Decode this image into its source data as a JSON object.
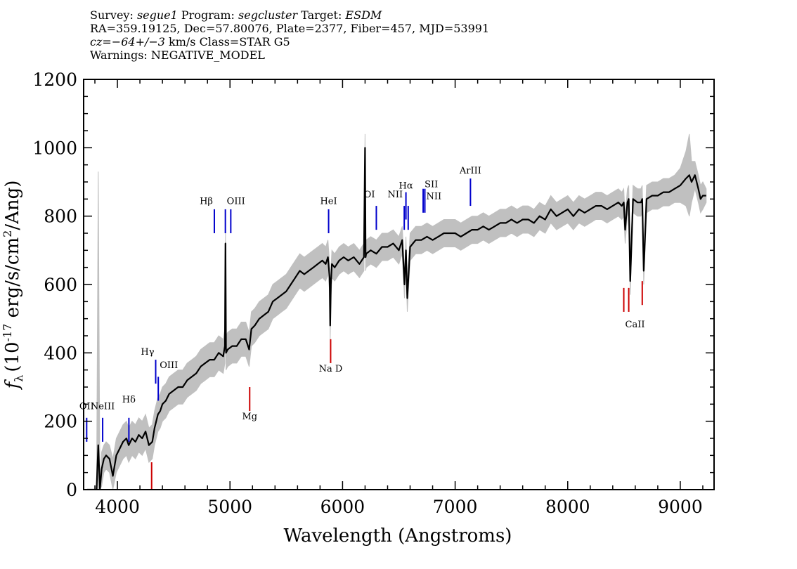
{
  "header": {
    "survey_label": "Survey: ",
    "survey": "segue1",
    "program_label": " Program: ",
    "program": "segcluster",
    "target_label": " Target: ",
    "target": "ESDM",
    "line2": "RA=359.19125, Dec=57.80076, Plate=2377, Fiber=457, MJD=53991",
    "cz_label": "cz",
    "cz": "=−64+/−3",
    "cz_tail": " km/s Class=STAR G5",
    "warnings": "Warnings: NEGATIVE_MODEL"
  },
  "chart_data": {
    "type": "line",
    "xlabel": "Wavelength (Angstroms)",
    "ylabel": "f_λ (10^-17 erg/s/cm²/Ang)",
    "ylabel_text": "(10",
    "ylabel_exp": "-17",
    "ylabel_tail": " erg/s/cm",
    "ylabel_sq": "2",
    "ylabel_end": "/Ang)",
    "xlim": [
      3700,
      9300
    ],
    "ylim": [
      0,
      1200
    ],
    "xticks": [
      4000,
      5000,
      6000,
      7000,
      8000,
      9000
    ],
    "yticks": [
      0,
      200,
      400,
      600,
      800,
      1000,
      1200
    ],
    "colors": {
      "flux": "#000000",
      "error": "#c0c0c0",
      "emission": "#0000cc",
      "absorption": "#cc0000",
      "spike": "#444444"
    },
    "spectrum": {
      "x": [
        3730,
        3760,
        3790,
        3800,
        3815,
        3830,
        3845,
        3860,
        3880,
        3900,
        3930,
        3960,
        3990,
        4020,
        4050,
        4080,
        4100,
        4130,
        4160,
        4190,
        4220,
        4250,
        4280,
        4310,
        4330,
        4345,
        4360,
        4380,
        4400,
        4430,
        4460,
        4500,
        4540,
        4580,
        4620,
        4660,
        4700,
        4740,
        4780,
        4820,
        4860,
        4900,
        4940,
        4955,
        4960,
        4965,
        4980,
        5020,
        5060,
        5100,
        5140,
        5170,
        5190,
        5220,
        5260,
        5300,
        5340,
        5380,
        5420,
        5460,
        5500,
        5540,
        5580,
        5620,
        5660,
        5700,
        5740,
        5780,
        5820,
        5850,
        5870,
        5885,
        5890,
        5896,
        5905,
        5930,
        5970,
        6010,
        6050,
        6100,
        6150,
        6190,
        6200,
        6205,
        6210,
        6250,
        6300,
        6350,
        6400,
        6450,
        6500,
        6530,
        6550,
        6563,
        6575,
        6600,
        6650,
        6700,
        6750,
        6800,
        6850,
        6900,
        6950,
        7000,
        7050,
        7100,
        7150,
        7200,
        7250,
        7300,
        7350,
        7400,
        7450,
        7500,
        7550,
        7600,
        7650,
        7700,
        7750,
        7800,
        7850,
        7900,
        7950,
        8000,
        8050,
        8100,
        8150,
        8200,
        8250,
        8300,
        8350,
        8400,
        8450,
        8480,
        8498,
        8510,
        8530,
        8542,
        8555,
        8580,
        8620,
        8650,
        8662,
        8675,
        8700,
        8750,
        8800,
        8850,
        8900,
        8950,
        9000,
        9050,
        9080,
        9100,
        9130,
        9160,
        9180,
        9200,
        9230
      ],
      "y": [
        0,
        0,
        0,
        0,
        0,
        130,
        0,
        60,
        90,
        100,
        90,
        40,
        100,
        120,
        140,
        150,
        130,
        150,
        140,
        160,
        150,
        170,
        130,
        140,
        180,
        200,
        220,
        230,
        250,
        260,
        280,
        290,
        300,
        300,
        320,
        330,
        340,
        360,
        370,
        380,
        380,
        400,
        390,
        420,
        720,
        400,
        410,
        420,
        420,
        440,
        440,
        410,
        470,
        480,
        500,
        510,
        520,
        550,
        560,
        570,
        580,
        600,
        620,
        640,
        630,
        640,
        650,
        660,
        670,
        660,
        680,
        620,
        480,
        600,
        660,
        650,
        670,
        680,
        670,
        680,
        660,
        680,
        1000,
        680,
        690,
        700,
        690,
        710,
        710,
        720,
        700,
        730,
        600,
        700,
        560,
        710,
        730,
        730,
        740,
        730,
        740,
        750,
        750,
        750,
        740,
        750,
        760,
        760,
        770,
        760,
        770,
        780,
        780,
        790,
        780,
        790,
        790,
        780,
        800,
        790,
        820,
        800,
        810,
        820,
        800,
        820,
        810,
        820,
        830,
        830,
        820,
        830,
        840,
        830,
        840,
        760,
        840,
        850,
        610,
        850,
        840,
        840,
        850,
        640,
        850,
        860,
        860,
        870,
        870,
        880,
        890,
        910,
        920,
        900,
        920,
        880,
        850,
        860,
        860
      ],
      "err_top": [
        0,
        0,
        0,
        0,
        0,
        930,
        0,
        110,
        130,
        140,
        130,
        90,
        150,
        170,
        190,
        200,
        180,
        200,
        190,
        210,
        200,
        220,
        180,
        190,
        230,
        250,
        270,
        280,
        300,
        310,
        330,
        340,
        350,
        350,
        370,
        380,
        390,
        410,
        420,
        430,
        430,
        450,
        440,
        470,
        750,
        450,
        460,
        470,
        470,
        490,
        490,
        460,
        520,
        530,
        550,
        560,
        570,
        600,
        610,
        620,
        630,
        650,
        670,
        690,
        680,
        690,
        700,
        710,
        720,
        710,
        730,
        660,
        520,
        640,
        700,
        690,
        710,
        720,
        710,
        720,
        700,
        720,
        1040,
        720,
        730,
        740,
        730,
        750,
        750,
        760,
        740,
        770,
        640,
        740,
        600,
        750,
        770,
        770,
        780,
        770,
        780,
        790,
        790,
        790,
        780,
        790,
        800,
        800,
        810,
        800,
        810,
        820,
        820,
        830,
        820,
        830,
        830,
        820,
        840,
        830,
        860,
        840,
        850,
        860,
        840,
        860,
        850,
        860,
        870,
        870,
        860,
        870,
        880,
        870,
        880,
        800,
        880,
        890,
        650,
        890,
        880,
        880,
        890,
        680,
        890,
        900,
        900,
        910,
        910,
        920,
        940,
        990,
        1040,
        960,
        960,
        920,
        890,
        900,
        880
      ]
    },
    "lines": [
      {
        "label": "OII",
        "wave": 3727,
        "kind": "emission",
        "ymin": 140,
        "ymax": 210,
        "ly": 235,
        "anchor": "middle"
      },
      {
        "label": "NeIII",
        "wave": 3869,
        "kind": "emission",
        "ymin": 140,
        "ymax": 210,
        "ly": 235,
        "anchor": "middle"
      },
      {
        "label": "Hδ",
        "wave": 4102,
        "kind": "emission",
        "ymin": 140,
        "ymax": 210,
        "ly": 255,
        "anchor": "middle"
      },
      {
        "label": "Hγ",
        "wave": 4340,
        "kind": "emission",
        "ymin": 310,
        "ymax": 380,
        "ly": 395,
        "anchor": "end"
      },
      {
        "label": "OIII",
        "wave": 4363,
        "kind": "emission",
        "ymin": 260,
        "ymax": 330,
        "ly": 355,
        "anchor": "start"
      },
      {
        "label": "Hβ",
        "wave": 4861,
        "kind": "emission",
        "ymin": 750,
        "ymax": 820,
        "ly": 835,
        "anchor": "end"
      },
      {
        "label": "OIII",
        "wave": 4959,
        "kind": "emission",
        "ymin": 750,
        "ymax": 820,
        "ly": 835,
        "anchor": "start"
      },
      {
        "label": "OIII",
        "wave": 5007,
        "kind": "emission",
        "ymin": 750,
        "ymax": 820,
        "ly": 0,
        "anchor": "start"
      },
      {
        "label": "HeI",
        "wave": 5876,
        "kind": "emission",
        "ymin": 750,
        "ymax": 820,
        "ly": 835,
        "anchor": "middle"
      },
      {
        "label": "OI",
        "wave": 6300,
        "kind": "emission",
        "ymin": 760,
        "ymax": 830,
        "ly": 855,
        "anchor": "end"
      },
      {
        "label": "NII",
        "wave": 6548,
        "kind": "emission",
        "ymin": 760,
        "ymax": 830,
        "ly": 855,
        "anchor": "end"
      },
      {
        "label": "Hα",
        "wave": 6563,
        "kind": "emission",
        "ymin": 790,
        "ymax": 870,
        "ly": 880,
        "anchor": "middle"
      },
      {
        "label": "NII",
        "wave": 6583,
        "kind": "emission",
        "ymin": 760,
        "ymax": 830,
        "ly": 0,
        "anchor": "start"
      },
      {
        "label": "SII",
        "wave": 6716,
        "kind": "emission",
        "ymin": 810,
        "ymax": 880,
        "ly": 885,
        "anchor": "start"
      },
      {
        "label": "NII",
        "wave": 6731,
        "kind": "emission",
        "ymin": 810,
        "ymax": 880,
        "ly": 850,
        "anchor": "start"
      },
      {
        "label": "ArIII",
        "wave": 7136,
        "kind": "emission",
        "ymin": 830,
        "ymax": 910,
        "ly": 925,
        "anchor": "middle"
      },
      {
        "label": "Mg",
        "wave": 5175,
        "kind": "absorption",
        "ymin": 230,
        "ymax": 300,
        "ly": 205,
        "anchor": "middle"
      },
      {
        "label": "Na D",
        "wave": 5894,
        "kind": "absorption",
        "ymin": 370,
        "ymax": 440,
        "ly": 345,
        "anchor": "middle"
      },
      {
        "label": "CaII",
        "wave": 8498,
        "kind": "absorption",
        "ymin": 520,
        "ymax": 590,
        "ly": 475,
        "anchor": "start"
      },
      {
        "label": "CaII",
        "wave": 8542,
        "kind": "absorption",
        "ymin": 520,
        "ymax": 590,
        "ly": 0,
        "anchor": "start"
      },
      {
        "label": "CaII",
        "wave": 8662,
        "kind": "absorption",
        "ymin": 540,
        "ymax": 610,
        "ly": 0,
        "anchor": "start"
      },
      {
        "label": "",
        "wave": 4304,
        "kind": "absorption",
        "ymin": 0,
        "ymax": 80,
        "ly": 0,
        "anchor": "middle"
      }
    ]
  }
}
